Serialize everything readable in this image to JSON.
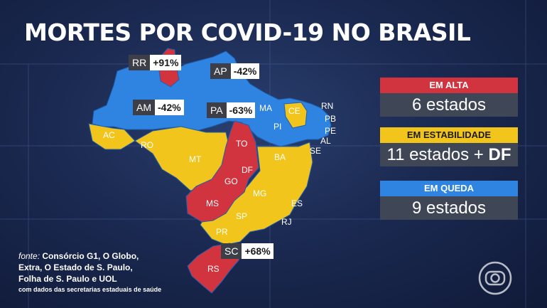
{
  "title": "MORTES POR COVID-19 NO BRASIL",
  "colors": {
    "alta": "#d1343f",
    "estabilidade": "#f2c51c",
    "queda": "#2e84e0"
  },
  "map_labels": {
    "ac": "AC",
    "ro": "RO",
    "mt": "MT",
    "to": "TO",
    "df": "DF",
    "go": "GO",
    "ms": "MS",
    "mg": "MG",
    "sp": "SP",
    "pr": "PR",
    "rs": "RS",
    "rj": "RJ",
    "es": "ES",
    "ba": "BA",
    "pi": "PI",
    "ma": "MA",
    "ce": "CE",
    "rn": "RN",
    "pb": "PB",
    "pe": "PE",
    "al": "AL",
    "se": "SE"
  },
  "tags": {
    "rr": {
      "state": "RR",
      "value": "+91%"
    },
    "ap": {
      "state": "AP",
      "value": "-42%"
    },
    "am": {
      "state": "AM",
      "value": "-42%"
    },
    "pa": {
      "state": "PA",
      "value": "-63%"
    },
    "sc": {
      "state": "SC",
      "value": "+68%"
    }
  },
  "legend": {
    "alta": {
      "heading": "EM ALTA",
      "count": "6 estados"
    },
    "estabilidade": {
      "heading": "EM ESTABILIDADE",
      "count_main": "11 estados + ",
      "count_extra": "DF"
    },
    "queda": {
      "heading": "EM QUEDA",
      "count": "9 estados"
    }
  },
  "source": {
    "prefix": "fonte: ",
    "line1": "Consórcio G1, O Globo,",
    "line2": "Extra, O Estado de S. Paulo,",
    "line3": "Folha de S. Paulo e UOL",
    "line4": "com dados das secretarias estaduais de saúde"
  },
  "logo": {
    "icon": "globo-logo-icon"
  }
}
